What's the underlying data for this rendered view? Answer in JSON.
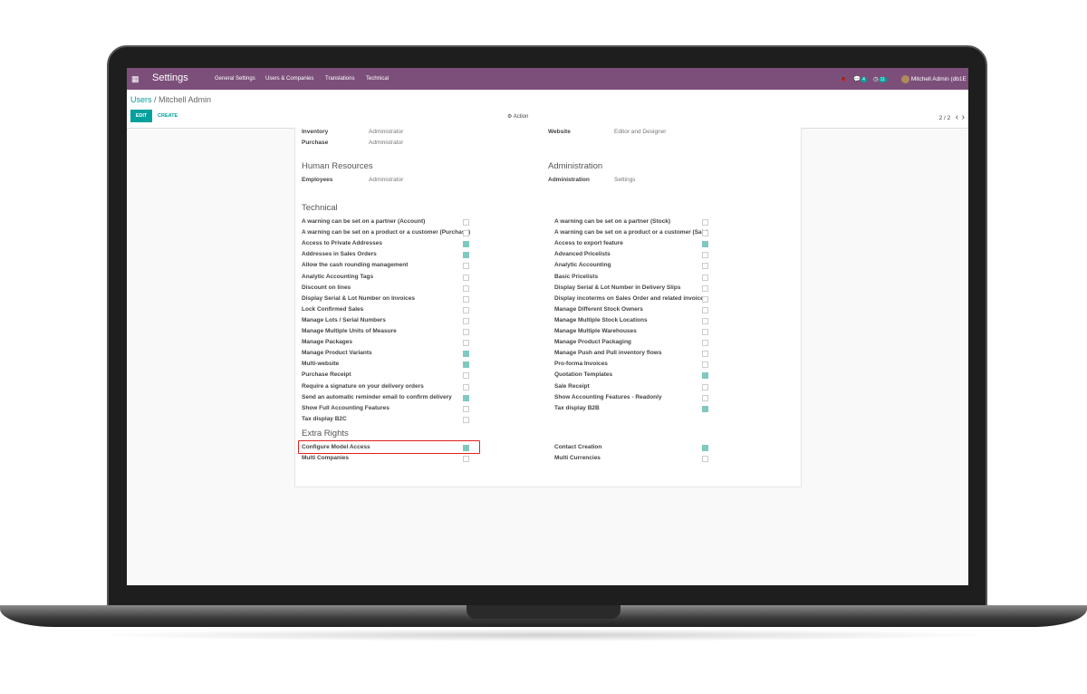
{
  "nav": {
    "app": "Settings",
    "menus": [
      "General Settings",
      "Users & Companies",
      "Translations",
      "Technical"
    ],
    "messages_count": "4",
    "activities_count": "11",
    "user": "Mitchell Admin (db1E"
  },
  "breadcrumb": {
    "parent": "Users",
    "current": "Mitchell Admin"
  },
  "toolbar": {
    "edit": "EDIT",
    "create": "CREATE",
    "action": "⚙ Action",
    "pager": "2 / 2",
    "prev": "‹",
    "next": "›"
  },
  "top_fields": {
    "left": [
      {
        "label": "Inventory",
        "value": "Administrator"
      },
      {
        "label": "Purchase",
        "value": "Administrator"
      }
    ],
    "right": [
      {
        "label": "Website",
        "value": "Editor and Designer"
      }
    ]
  },
  "hr": {
    "title": "Human Resources",
    "label": "Employees",
    "value": "Administrator"
  },
  "admin": {
    "title": "Administration",
    "label": "Administration",
    "value": "Settings"
  },
  "technical": {
    "title": "Technical",
    "left": [
      [
        "A warning can be set on a partner (Account)",
        false
      ],
      [
        "A warning can be set on a product or a customer (Purchase)",
        false
      ],
      [
        "Access to Private Addresses",
        true
      ],
      [
        "Addresses in Sales Orders",
        true
      ],
      [
        "Allow the cash rounding management",
        false
      ],
      [
        "Analytic Accounting Tags",
        false
      ],
      [
        "Discount on lines",
        false
      ],
      [
        "Display Serial & Lot Number on Invoices",
        false
      ],
      [
        "Lock Confirmed Sales",
        false
      ],
      [
        "Manage Lots / Serial Numbers",
        false
      ],
      [
        "Manage Multiple Units of Measure",
        false
      ],
      [
        "Manage Packages",
        false
      ],
      [
        "Manage Product Variants",
        true
      ],
      [
        "Multi-website",
        true
      ],
      [
        "Purchase Receipt",
        false
      ],
      [
        "Require a signature on your delivery orders",
        false
      ],
      [
        "Send an automatic reminder email to confirm delivery",
        true
      ],
      [
        "Show Full Accounting Features",
        false
      ],
      [
        "Tax display B2C",
        false
      ]
    ],
    "right": [
      [
        "A warning can be set on a partner (Stock)",
        false
      ],
      [
        "A warning can be set on a product or a customer (Sale)",
        false
      ],
      [
        "Access to export feature",
        true
      ],
      [
        "Advanced Pricelists",
        false
      ],
      [
        "Analytic Accounting",
        false
      ],
      [
        "Basic Pricelists",
        false
      ],
      [
        "Display Serial & Lot Number in Delivery Slips",
        false
      ],
      [
        "Display incoterms on Sales Order and related invoices",
        false
      ],
      [
        "Manage Different Stock Owners",
        false
      ],
      [
        "Manage Multiple Stock Locations",
        false
      ],
      [
        "Manage Multiple Warehouses",
        false
      ],
      [
        "Manage Product Packaging",
        false
      ],
      [
        "Manage Push and Pull inventory flows",
        false
      ],
      [
        "Pro-forma Invoices",
        false
      ],
      [
        "Quotation Templates",
        true
      ],
      [
        "Sale Receipt",
        false
      ],
      [
        "Show Accounting Features - Readonly",
        false
      ],
      [
        "Tax display B2B",
        true
      ]
    ]
  },
  "extra": {
    "title": "Extra Rights",
    "left": [
      [
        "Configure Model Access",
        true
      ],
      [
        "Multi Companies",
        false
      ]
    ],
    "right": [
      [
        "Contact Creation",
        true
      ],
      [
        "Multi Currencies",
        false
      ]
    ]
  },
  "colors": {
    "navbar": "#7c4f7a",
    "accent": "#00a09d",
    "highlight": "#e02020"
  }
}
